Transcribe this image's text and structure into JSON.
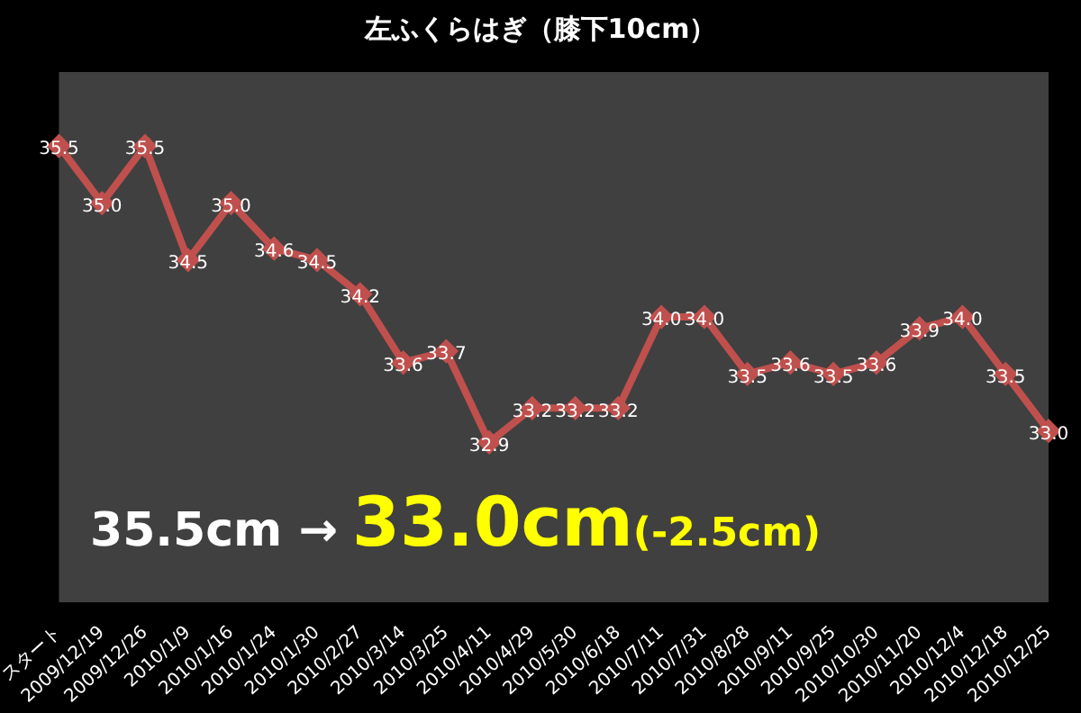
{
  "chart_data": {
    "type": "line",
    "title": "左ふくらはぎ（膝下10cm）",
    "categories": [
      "スタート",
      "2009/12/19",
      "2009/12/26",
      "2010/1/9",
      "2010/1/16",
      "2010/1/24",
      "2010/1/30",
      "2010/2/27",
      "2010/3/14",
      "2010/3/25",
      "2010/4/11",
      "2010/4/29",
      "2010/5/30",
      "2010/6/18",
      "2010/7/11",
      "2010/7/31",
      "2010/8/28",
      "2010/9/11",
      "2010/9/25",
      "2010/10/30",
      "2010/11/20",
      "2010/12/4",
      "2010/12/18",
      "2010/12/25"
    ],
    "values": [
      35.5,
      35.0,
      35.5,
      34.5,
      35.0,
      34.6,
      34.5,
      34.2,
      33.6,
      33.7,
      32.9,
      33.2,
      33.2,
      33.2,
      34.0,
      34.0,
      33.5,
      33.6,
      33.5,
      33.6,
      33.9,
      34.0,
      33.5,
      33.0
    ],
    "value_labels": [
      "35.5",
      "35.0",
      "35.5",
      "34.5",
      "35.0",
      "34.6",
      "34.5",
      "34.2",
      "33.6",
      "33.7",
      "32.9",
      "33.2",
      "33.2",
      "33.2",
      "34.0",
      "34.0",
      "33.5",
      "33.6",
      "33.5",
      "33.6",
      "33.9",
      "34.0",
      "33.5",
      "33.0"
    ],
    "color": "#c0504d",
    "marker": "diamond",
    "grid": false,
    "legend": false,
    "annotations": [
      "35.5cm →",
      "33.0cm",
      "(-2.5cm)"
    ]
  }
}
